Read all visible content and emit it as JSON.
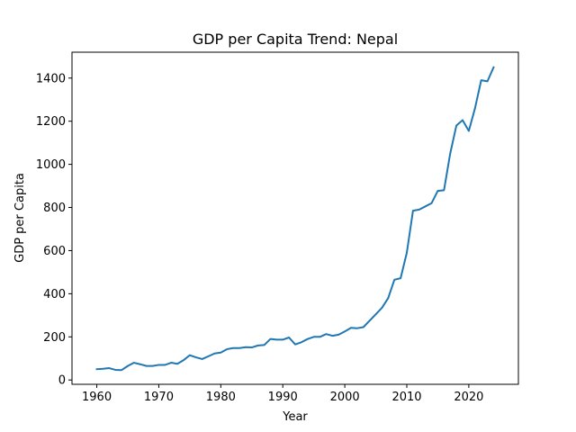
{
  "chart_data": {
    "type": "line",
    "title": "GDP per Capita Trend: Nepal",
    "xlabel": "Year",
    "ylabel": "GDP per Capita",
    "xlim": [
      1956,
      2028
    ],
    "ylim": [
      -20,
      1520
    ],
    "x_ticks": [
      1960,
      1970,
      1980,
      1990,
      2000,
      2010,
      2020
    ],
    "y_ticks": [
      0,
      200,
      400,
      600,
      800,
      1000,
      1200,
      1400
    ],
    "grid": false,
    "line_color": "#1f77b4",
    "series": [
      {
        "x": [
          1960,
          1961,
          1962,
          1963,
          1964,
          1965,
          1966,
          1967,
          1968,
          1969,
          1970,
          1971,
          1972,
          1973,
          1974,
          1975,
          1976,
          1977,
          1978,
          1979,
          1980,
          1981,
          1982,
          1983,
          1984,
          1985,
          1986,
          1987,
          1988,
          1989,
          1990,
          1991,
          1992,
          1993,
          1994,
          1995,
          1996,
          1997,
          1998,
          1999,
          2000,
          2001,
          2002,
          2003,
          2004,
          2005,
          2006,
          2007,
          2008,
          2009,
          2010,
          2011,
          2012,
          2013,
          2014,
          2015,
          2016,
          2017,
          2018,
          2019,
          2020,
          2021,
          2022,
          2023,
          2024
        ],
        "values": [
          50,
          52,
          55,
          47,
          46,
          65,
          80,
          73,
          65,
          65,
          70,
          70,
          80,
          75,
          92,
          115,
          105,
          97,
          110,
          123,
          127,
          143,
          148,
          148,
          152,
          151,
          160,
          162,
          190,
          187,
          187,
          197,
          165,
          175,
          190,
          200,
          200,
          213,
          205,
          210,
          225,
          242,
          240,
          245,
          275,
          305,
          335,
          380,
          465,
          472,
          590,
          785,
          790,
          805,
          820,
          877,
          880,
          1050,
          1180,
          1205,
          1155,
          1260,
          1390,
          1385,
          1450
        ]
      }
    ]
  }
}
